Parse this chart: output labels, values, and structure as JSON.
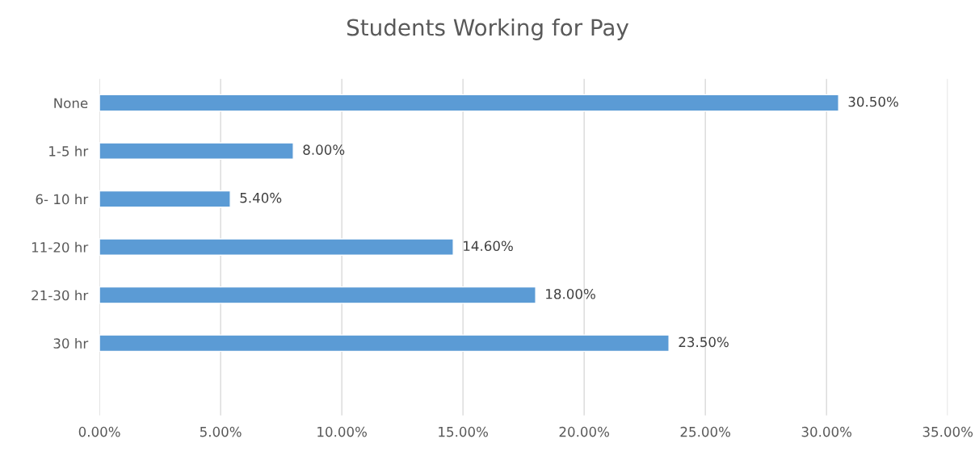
{
  "chart_data": {
    "type": "bar",
    "orientation": "horizontal",
    "title": "Students Working for Pay",
    "categories": [
      "None",
      "1-5 hr",
      "6- 10 hr",
      "11-20 hr",
      "21-30 hr",
      "30 hr",
      null
    ],
    "values": [
      30.5,
      8.0,
      5.4,
      14.6,
      18.0,
      23.5,
      null
    ],
    "value_labels": [
      "30.50%",
      "8.00%",
      "5.40%",
      "14.60%",
      "18.00%",
      "23.50%",
      null
    ],
    "color": "#5b9bd5",
    "xlim": [
      0,
      35
    ],
    "xticks": [
      {
        "value": 0,
        "label": "0.00%"
      },
      {
        "value": 5,
        "label": "5.00%"
      },
      {
        "value": 10,
        "label": "10.00%"
      },
      {
        "value": 15,
        "label": "15.00%"
      },
      {
        "value": 20,
        "label": "20.00%"
      },
      {
        "value": 25,
        "label": "25.00%"
      },
      {
        "value": 30,
        "label": "30.00%"
      },
      {
        "value": 35,
        "label": "35.00%"
      }
    ],
    "grid": "x",
    "legend": false
  }
}
